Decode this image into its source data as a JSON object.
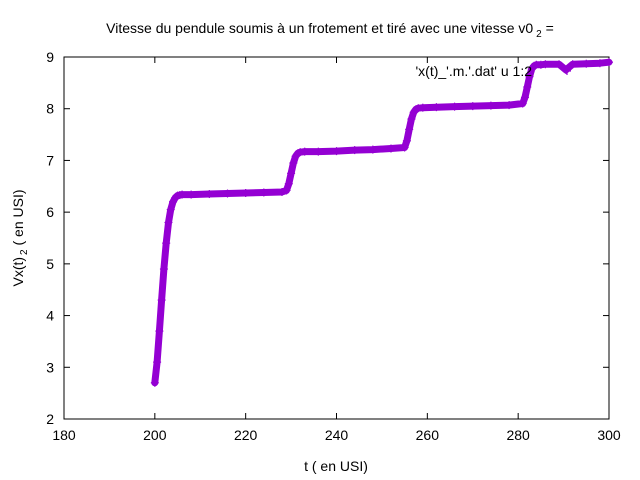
{
  "chart_data": {
    "type": "scatter",
    "title": "Vitesse du pendule soumis à un frotement et tiré avec une vitesse v0",
    "title_subscript": "2",
    "title_suffix": " =",
    "xlabel": "t ( en USI)",
    "ylabel": "Vx(t)",
    "ylabel_subscript": "2",
    "ylabel_suffix": " ( en USI)",
    "xlim": [
      180,
      300
    ],
    "ylim": [
      2,
      9
    ],
    "xticks": [
      "180",
      "200",
      "220",
      "240",
      "260",
      "280",
      "300"
    ],
    "yticks": [
      "2",
      "3",
      "4",
      "5",
      "6",
      "7",
      "8",
      "9"
    ],
    "grid": false,
    "legend_position": "top-right",
    "marker": "plus",
    "series": [
      {
        "name": "'x(t)_'.m.'.dat' u 1:2",
        "color": "#9400d3",
        "x": [
          200,
          200.5,
          201,
          201.5,
          202,
          202.5,
          203,
          203.5,
          204,
          204.5,
          205,
          205.5,
          206,
          208,
          212,
          216,
          220,
          224,
          228,
          229,
          229.5,
          230,
          230.5,
          231,
          231.5,
          232,
          233,
          236,
          240,
          244,
          248,
          252,
          255,
          255.5,
          256,
          256.5,
          257,
          257.5,
          258,
          259,
          262,
          266,
          270,
          274,
          278,
          281,
          281.5,
          282,
          282.5,
          283,
          283.5,
          284,
          285,
          286,
          289,
          290.5,
          292,
          295,
          298,
          300
        ],
        "y": [
          2.7,
          3.1,
          3.7,
          4.3,
          4.9,
          5.4,
          5.8,
          6.05,
          6.2,
          6.28,
          6.32,
          6.33,
          6.34,
          6.34,
          6.35,
          6.36,
          6.37,
          6.38,
          6.39,
          6.42,
          6.55,
          6.75,
          6.95,
          7.08,
          7.14,
          7.16,
          7.17,
          7.17,
          7.18,
          7.2,
          7.21,
          7.23,
          7.25,
          7.38,
          7.6,
          7.8,
          7.93,
          7.99,
          8.01,
          8.02,
          8.03,
          8.04,
          8.05,
          8.06,
          8.07,
          8.1,
          8.22,
          8.42,
          8.62,
          8.77,
          8.83,
          8.85,
          8.85,
          8.86,
          8.86,
          8.75,
          8.86,
          8.87,
          8.88,
          8.9
        ]
      }
    ]
  }
}
